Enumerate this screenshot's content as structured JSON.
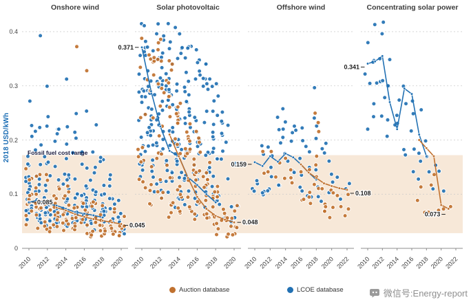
{
  "chart_data": {
    "type": "scatter",
    "y_axis": {
      "title": "2018 USD/kWh",
      "ticks": [
        "0",
        "0.1",
        "0.2",
        "0.3",
        "0.4"
      ],
      "tick_values": [
        0,
        0.1,
        0.2,
        0.3,
        0.4
      ],
      "min": 0,
      "max": 0.42
    },
    "fossil_band": {
      "label": "Fossil fuel cost range",
      "min": 0.028,
      "max": 0.172
    },
    "legend": {
      "items": [
        {
          "label": "Auction database",
          "series": "auction"
        },
        {
          "label": "LCOE database",
          "series": "lcoe"
        }
      ]
    },
    "colors": {
      "auction": "#c0712f",
      "lcoe": "#2271b3",
      "band": "#f7e8d8",
      "grid": "#c9c9c9",
      "axis": "#8c8c8c",
      "tick_text": "#3c3c3c",
      "annotation": "#222222",
      "axis_title": "#1b6db4"
    },
    "watermark": {
      "text": "微信号:Energy-report"
    },
    "annotations": [
      {
        "panel": 0,
        "year": 2010,
        "value": 0.085,
        "label": "0.085",
        "side": "right",
        "dy": 0
      },
      {
        "panel": 0,
        "year": 2020,
        "value": 0.045,
        "label": "0.045",
        "side": "right",
        "dy": 2
      },
      {
        "panel": 1,
        "year": 2010,
        "value": 0.371,
        "label": "0.371",
        "side": "left",
        "dy": 0
      },
      {
        "panel": 1,
        "year": 2020,
        "value": 0.048,
        "label": "0.048",
        "side": "right",
        "dy": 0
      },
      {
        "panel": 2,
        "year": 2010,
        "value": 0.159,
        "label": "0.159",
        "side": "left",
        "dy": 3
      },
      {
        "panel": 2,
        "year": 2022,
        "value": 0.108,
        "label": "0.108",
        "side": "right",
        "dy": 5
      },
      {
        "panel": 3,
        "year": 2010,
        "value": 0.341,
        "label": "0.341",
        "side": "left",
        "dy": 5
      },
      {
        "panel": 3,
        "year": 2021,
        "value": 0.073,
        "label": "0.073",
        "side": "left",
        "dy": 8
      }
    ],
    "panels": [
      {
        "title": "Onshore wind",
        "year_min": 2010,
        "year_max": 2020,
        "tick_years": [
          2010,
          2012,
          2014,
          2016,
          2018,
          2020
        ],
        "trend_lcoe": [
          [
            2010,
            0.085
          ],
          [
            2011,
            0.089
          ],
          [
            2012,
            0.082
          ],
          [
            2013,
            0.079
          ],
          [
            2014,
            0.073
          ],
          [
            2015,
            0.067
          ],
          [
            2016,
            0.064
          ],
          [
            2017,
            0.061
          ],
          [
            2018,
            0.057
          ]
        ],
        "trend_auction": [
          [
            2013,
            0.075
          ],
          [
            2014,
            0.07
          ],
          [
            2015,
            0.063
          ],
          [
            2016,
            0.058
          ],
          [
            2017,
            0.054
          ],
          [
            2018,
            0.051
          ],
          [
            2019,
            0.048
          ],
          [
            2020,
            0.045
          ]
        ],
        "scatter_lcoe": [
          [
            2010,
            16,
            0.04,
            0.14,
            1.2
          ],
          [
            2010,
            5,
            0.14,
            0.24
          ],
          [
            2010,
            1,
            0.27,
            0.29
          ],
          [
            2011,
            16,
            0.04,
            0.14,
            1.2
          ],
          [
            2011,
            5,
            0.14,
            0.24
          ],
          [
            2011,
            1,
            0.38,
            0.4
          ],
          [
            2012,
            16,
            0.04,
            0.14,
            1.2
          ],
          [
            2012,
            5,
            0.14,
            0.26
          ],
          [
            2012,
            1,
            0.29,
            0.31
          ],
          [
            2013,
            15,
            0.04,
            0.13,
            1.2
          ],
          [
            2013,
            5,
            0.13,
            0.22
          ],
          [
            2014,
            15,
            0.04,
            0.13,
            1.2
          ],
          [
            2014,
            5,
            0.13,
            0.24
          ],
          [
            2014,
            1,
            0.3,
            0.32
          ],
          [
            2015,
            14,
            0.035,
            0.12,
            1.2
          ],
          [
            2015,
            5,
            0.12,
            0.22
          ],
          [
            2015,
            1,
            0.24,
            0.26
          ],
          [
            2016,
            14,
            0.035,
            0.12,
            1.2
          ],
          [
            2016,
            5,
            0.12,
            0.26
          ],
          [
            2017,
            13,
            0.03,
            0.11,
            1.2
          ],
          [
            2017,
            4,
            0.11,
            0.2
          ],
          [
            2017,
            1,
            0.21,
            0.23
          ],
          [
            2018,
            12,
            0.03,
            0.11,
            1.2
          ],
          [
            2018,
            4,
            0.11,
            0.18
          ],
          [
            2019,
            10,
            0.03,
            0.1,
            1.2
          ],
          [
            2019,
            3,
            0.1,
            0.16
          ],
          [
            2020,
            8,
            0.025,
            0.09,
            1.2
          ]
        ],
        "scatter_auction": [
          [
            2010,
            8,
            0.03,
            0.1
          ],
          [
            2010,
            3,
            0.1,
            0.17
          ],
          [
            2011,
            9,
            0.03,
            0.1
          ],
          [
            2011,
            3,
            0.1,
            0.16
          ],
          [
            2012,
            9,
            0.03,
            0.1
          ],
          [
            2012,
            2,
            0.1,
            0.15
          ],
          [
            2013,
            10,
            0.03,
            0.1
          ],
          [
            2013,
            2,
            0.1,
            0.14
          ],
          [
            2014,
            10,
            0.03,
            0.1
          ],
          [
            2014,
            2,
            0.1,
            0.14
          ],
          [
            2015,
            10,
            0.025,
            0.09
          ],
          [
            2015,
            1,
            0.365,
            0.375
          ],
          [
            2016,
            10,
            0.025,
            0.09
          ],
          [
            2016,
            1,
            0.325,
            0.335
          ],
          [
            2017,
            11,
            0.02,
            0.09
          ],
          [
            2018,
            11,
            0.02,
            0.08
          ],
          [
            2019,
            9,
            0.02,
            0.075
          ],
          [
            2020,
            8,
            0.02,
            0.07
          ]
        ]
      },
      {
        "title": "Solar photovoltaic",
        "year_min": 2010,
        "year_max": 2020,
        "tick_years": [
          2010,
          2012,
          2014,
          2016,
          2018,
          2020
        ],
        "trend_lcoe": [
          [
            2010,
            0.371
          ],
          [
            2011,
            0.29
          ],
          [
            2012,
            0.225
          ],
          [
            2013,
            0.18
          ],
          [
            2014,
            0.17
          ],
          [
            2015,
            0.131
          ],
          [
            2016,
            0.117
          ],
          [
            2017,
            0.1
          ],
          [
            2018,
            0.085
          ]
        ],
        "trend_auction": [
          [
            2013,
            0.21
          ],
          [
            2014,
            0.17
          ],
          [
            2015,
            0.13
          ],
          [
            2016,
            0.095
          ],
          [
            2017,
            0.073
          ],
          [
            2018,
            0.06
          ],
          [
            2019,
            0.053
          ],
          [
            2020,
            0.048
          ]
        ],
        "scatter_lcoe": [
          [
            2010,
            26,
            0.13,
            0.42,
            0.9
          ],
          [
            2011,
            28,
            0.1,
            0.42,
            0.9
          ],
          [
            2012,
            30,
            0.08,
            0.42
          ],
          [
            2013,
            30,
            0.07,
            0.42
          ],
          [
            2014,
            28,
            0.06,
            0.41
          ],
          [
            2015,
            26,
            0.055,
            0.4
          ],
          [
            2016,
            24,
            0.05,
            0.38
          ],
          [
            2017,
            22,
            0.045,
            0.35
          ],
          [
            2018,
            20,
            0.04,
            0.32
          ],
          [
            2019,
            12,
            0.04,
            0.26
          ],
          [
            2020,
            8,
            0.035,
            0.18
          ]
        ],
        "scatter_auction": [
          [
            2010,
            12,
            0.1,
            0.4
          ],
          [
            2011,
            14,
            0.08,
            0.4
          ],
          [
            2012,
            18,
            0.06,
            0.4
          ],
          [
            2013,
            18,
            0.05,
            0.36
          ],
          [
            2014,
            18,
            0.05,
            0.32
          ],
          [
            2015,
            16,
            0.04,
            0.27
          ],
          [
            2016,
            16,
            0.035,
            0.22
          ],
          [
            2017,
            14,
            0.03,
            0.16
          ],
          [
            2018,
            14,
            0.025,
            0.12,
            1.3
          ],
          [
            2019,
            10,
            0.02,
            0.1,
            1.3
          ],
          [
            2020,
            8,
            0.02,
            0.08
          ]
        ]
      },
      {
        "title": "Offshore wind",
        "year_min": 2010,
        "year_max": 2022,
        "tick_years": [
          2010,
          2012,
          2014,
          2016,
          2018,
          2020,
          2022
        ],
        "trend_lcoe": [
          [
            2010,
            0.159
          ],
          [
            2011,
            0.152
          ],
          [
            2012,
            0.17
          ],
          [
            2013,
            0.16
          ],
          [
            2014,
            0.175
          ],
          [
            2015,
            0.168
          ],
          [
            2016,
            0.155
          ],
          [
            2017,
            0.14
          ],
          [
            2018,
            0.127
          ]
        ],
        "trend_auction": [
          [
            2016,
            0.155
          ],
          [
            2017,
            0.14
          ],
          [
            2018,
            0.13
          ],
          [
            2019,
            0.12
          ],
          [
            2020,
            0.115
          ],
          [
            2021,
            0.111
          ],
          [
            2022,
            0.108
          ]
        ],
        "scatter_lcoe": [
          [
            2010,
            4,
            0.1,
            0.2
          ],
          [
            2011,
            5,
            0.09,
            0.22
          ],
          [
            2012,
            6,
            0.1,
            0.28
          ],
          [
            2013,
            5,
            0.11,
            0.25
          ],
          [
            2014,
            6,
            0.11,
            0.27
          ],
          [
            2015,
            6,
            0.1,
            0.26
          ],
          [
            2016,
            6,
            0.1,
            0.24
          ],
          [
            2017,
            5,
            0.09,
            0.22
          ],
          [
            2018,
            6,
            0.09,
            0.25
          ],
          [
            2018,
            1,
            0.28,
            0.3
          ],
          [
            2019,
            4,
            0.08,
            0.2
          ],
          [
            2020,
            4,
            0.08,
            0.17
          ],
          [
            2021,
            2,
            0.09,
            0.14
          ],
          [
            2022,
            2,
            0.08,
            0.12
          ]
        ],
        "scatter_auction": [
          [
            2011,
            2,
            0.13,
            0.19
          ],
          [
            2012,
            2,
            0.12,
            0.18
          ],
          [
            2013,
            2,
            0.12,
            0.17
          ],
          [
            2014,
            2,
            0.11,
            0.17
          ],
          [
            2015,
            3,
            0.09,
            0.16
          ],
          [
            2016,
            3,
            0.08,
            0.15
          ],
          [
            2017,
            4,
            0.07,
            0.15
          ],
          [
            2018,
            9,
            0.08,
            0.27
          ],
          [
            2019,
            5,
            0.06,
            0.14
          ],
          [
            2020,
            4,
            0.05,
            0.12
          ],
          [
            2021,
            2,
            0.05,
            0.1
          ],
          [
            2022,
            3,
            0.06,
            0.11
          ]
        ]
      },
      {
        "title": "Concentrating solar power",
        "year_min": 2010,
        "year_max": 2022,
        "tick_years": [
          2010,
          2012,
          2014,
          2016,
          2018,
          2020,
          2022
        ],
        "trend_lcoe": [
          [
            2010,
            0.341
          ],
          [
            2011,
            0.345
          ],
          [
            2012,
            0.355
          ],
          [
            2013,
            0.27
          ],
          [
            2014,
            0.22
          ],
          [
            2015,
            0.295
          ],
          [
            2016,
            0.285
          ],
          [
            2017,
            0.21
          ],
          [
            2018,
            0.17
          ]
        ],
        "trend_auction": [
          [
            2017,
            0.2
          ],
          [
            2018,
            0.185
          ],
          [
            2019,
            0.17
          ],
          [
            2020,
            0.08
          ],
          [
            2021,
            0.073
          ]
        ],
        "scatter_lcoe": [
          [
            2010,
            4,
            0.2,
            0.4
          ],
          [
            2011,
            6,
            0.24,
            0.42
          ],
          [
            2012,
            7,
            0.22,
            0.42
          ],
          [
            2013,
            5,
            0.18,
            0.38
          ],
          [
            2014,
            4,
            0.16,
            0.34
          ],
          [
            2015,
            4,
            0.15,
            0.32
          ],
          [
            2016,
            5,
            0.14,
            0.31
          ],
          [
            2017,
            4,
            0.12,
            0.28
          ],
          [
            2018,
            3,
            0.11,
            0.22
          ],
          [
            2019,
            2,
            0.1,
            0.18
          ],
          [
            2020,
            2,
            0.1,
            0.15
          ]
        ],
        "scatter_auction": [
          [
            2017,
            2,
            0.07,
            0.12
          ],
          [
            2018,
            2,
            0.06,
            0.1
          ],
          [
            2019,
            2,
            0.06,
            0.19
          ],
          [
            2020,
            2,
            0.065,
            0.085
          ],
          [
            2021,
            1,
            0.07,
            0.078
          ]
        ]
      }
    ]
  }
}
